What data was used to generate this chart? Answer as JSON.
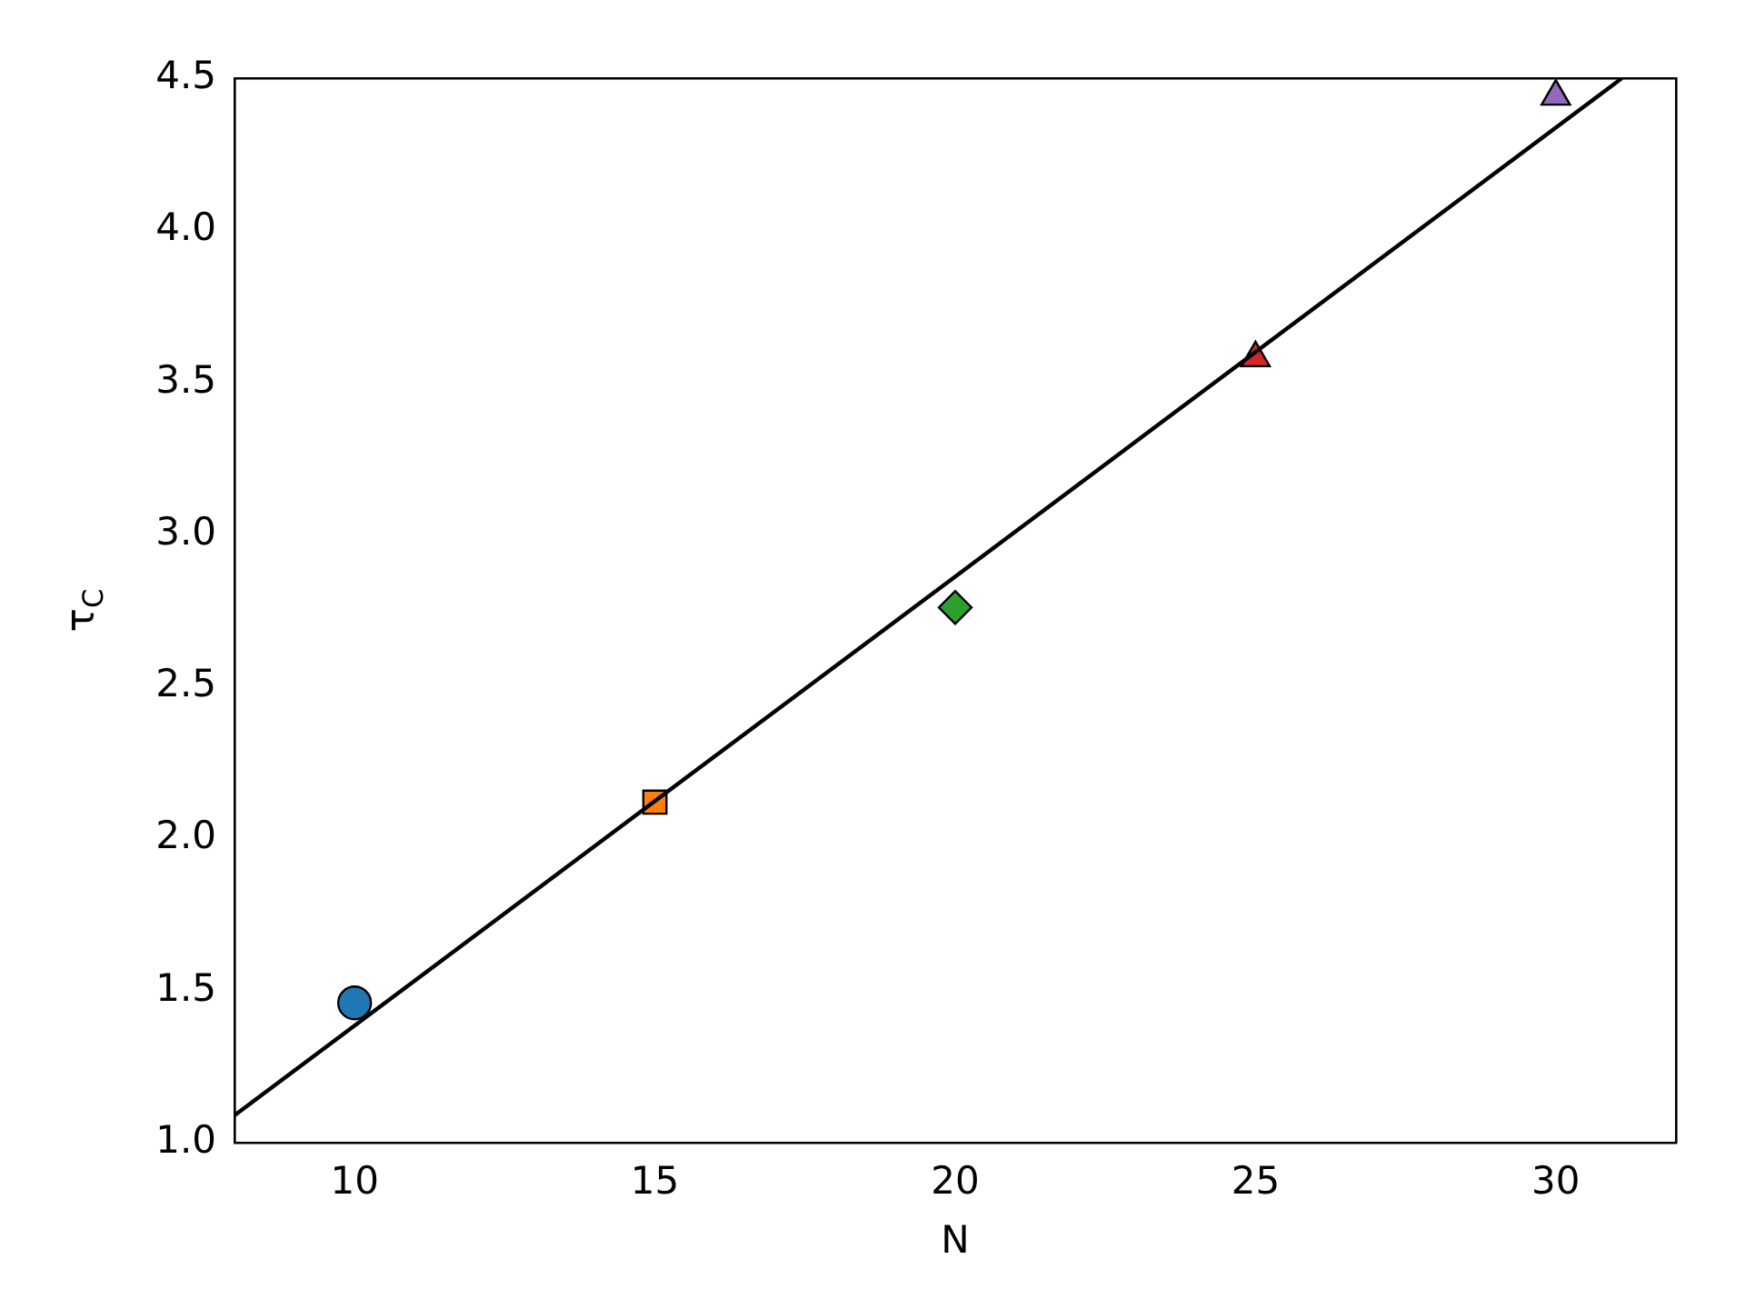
{
  "chart_data": {
    "type": "scatter",
    "xlabel": "N",
    "ylabel": "τ$_{C}$",
    "xlim": [
      8,
      32
    ],
    "xticks": [
      10,
      15,
      20,
      25,
      30
    ],
    "ylim": [
      1.0,
      4.5
    ],
    "yticks": [
      {
        "value": 1.0,
        "label": "1.0"
      },
      {
        "value": 1.5,
        "label": "1.5"
      },
      {
        "value": 2.0,
        "label": "2.0"
      },
      {
        "value": 2.5,
        "label": "2.5"
      },
      {
        "value": 3.0,
        "label": "3.0"
      },
      {
        "value": 3.5,
        "label": "3.5"
      },
      {
        "value": 4.0,
        "label": "4.0"
      },
      {
        "value": 4.5,
        "label": "4.5"
      }
    ],
    "grid": false,
    "legend": false,
    "series": [
      {
        "type": "line",
        "color": "#000000",
        "x": [
          8,
          31.1
        ],
        "values": [
          1.09,
          4.5
        ],
        "marker": "none",
        "line_style": "solid"
      },
      {
        "color": "#1f77b4",
        "x": [
          10
        ],
        "values": [
          1.46
        ],
        "marker": "circle"
      },
      {
        "color": "#ff7f0e",
        "x": [
          15
        ],
        "values": [
          2.12
        ],
        "marker": "square"
      },
      {
        "color": "#2ca02c",
        "x": [
          20
        ],
        "values": [
          2.76
        ],
        "marker": "diamond"
      },
      {
        "color": "#d62728",
        "x": [
          25
        ],
        "values": [
          3.58
        ],
        "marker": "triangle"
      },
      {
        "color": "#9467bd",
        "x": [
          30
        ],
        "values": [
          4.44
        ],
        "marker": "triangle"
      }
    ]
  }
}
